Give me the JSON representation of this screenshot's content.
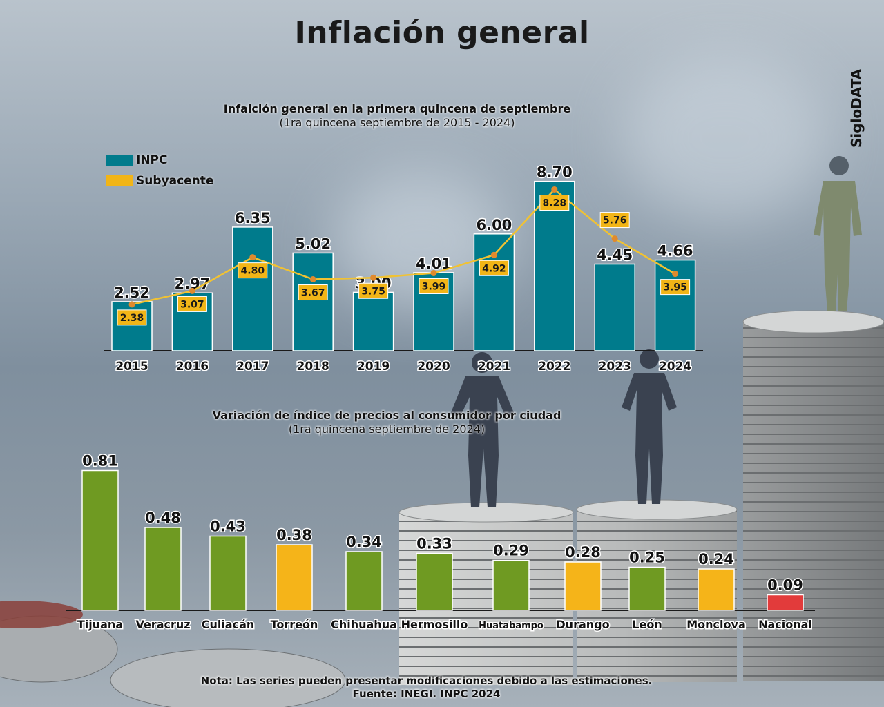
{
  "header": {
    "title": "Inflación general",
    "brand": "SigloDATA"
  },
  "colors": {
    "inpc": "#007b8c",
    "subyacente": "#f2b517",
    "city_green": "#6f9a22",
    "city_yellow": "#f5b419",
    "city_red": "#e23b3b",
    "line": "#f1c232",
    "point": "#e08a2e"
  },
  "legend": {
    "inpc": "INPC",
    "subyacente": "Subyacente"
  },
  "note": {
    "line1": "Nota: Las series pueden presentar modificaciones debido a las estimaciones.",
    "line2": "Fuente: INEGI. INPC 2024"
  },
  "chart_data": [
    {
      "type": "bar",
      "title": "Infalción general en la primera quincena de septiembre",
      "subtitle": "(1ra quincena septiembre de 2015 - 2024)",
      "categories": [
        "2015",
        "2016",
        "2017",
        "2018",
        "2019",
        "2020",
        "2021",
        "2022",
        "2023",
        "2024"
      ],
      "series": [
        {
          "name": "INPC",
          "kind": "bar",
          "values": [
            2.52,
            2.97,
            6.35,
            5.02,
            3.0,
            4.01,
            6.0,
            8.7,
            4.45,
            4.66
          ],
          "labels": [
            "2.52",
            "2.97",
            "6.35",
            "5.02",
            "3.00",
            "4.01",
            "6.00",
            "8.70",
            "4.45",
            "4.66"
          ]
        },
        {
          "name": "Subyacente",
          "kind": "line",
          "values": [
            2.38,
            3.07,
            4.8,
            3.67,
            3.75,
            3.99,
            4.92,
            8.28,
            5.76,
            3.95
          ],
          "labels": [
            "2.38",
            "3.07",
            "4.80",
            "3.67",
            "3.75",
            "3.99",
            "4.92",
            "8.28",
            "5.76",
            "3.95"
          ]
        }
      ],
      "ylim": [
        0,
        10
      ],
      "grid": false,
      "legend_position": "top-left"
    },
    {
      "type": "bar",
      "title": "Variación de índice de precios al consumidor por ciudad",
      "subtitle": "(1ra quincena septiembre de 2024)",
      "categories": [
        "Tijuana",
        "Veracruz",
        "Culiacán",
        "Torreón",
        "Chihuahua",
        "Hermosillo",
        "Huatabampo",
        "Durango",
        "León",
        "Monclova",
        "Nacional"
      ],
      "values": [
        0.81,
        0.48,
        0.43,
        0.38,
        0.34,
        0.33,
        0.29,
        0.28,
        0.25,
        0.24,
        0.09
      ],
      "labels": [
        "0.81",
        "0.48",
        "0.43",
        "0.38",
        "0.34",
        "0.33",
        "0.29",
        "0.28",
        "0.25",
        "0.24",
        "0.09"
      ],
      "color_keys": [
        "green",
        "green",
        "green",
        "yellow",
        "green",
        "green",
        "green",
        "yellow",
        "green",
        "yellow",
        "red"
      ],
      "ylim": [
        0,
        1
      ],
      "grid": false
    }
  ]
}
